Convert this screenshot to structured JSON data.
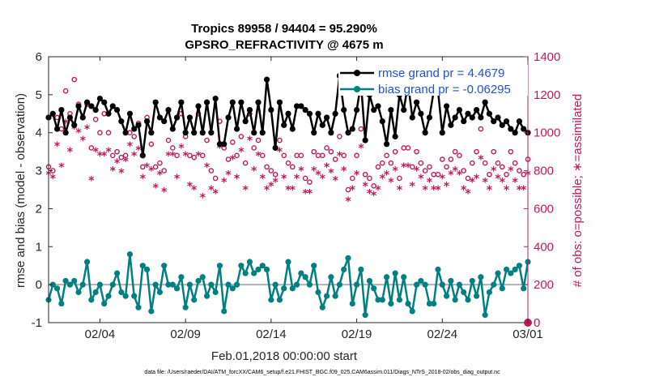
{
  "chart_data": {
    "type": "line",
    "title_line1": "Tropics 89958 / 94404 = 95.290%",
    "title_line2": "GPSRO_REFRACTIVITY @ 4675 m",
    "xlabel": "Feb.01,2018 00:00:00 start",
    "ylabel_left": "rmse and bias (model - observation)",
    "ylabel_right": "# of obs: o=possible; ∗=assimilated",
    "footnote": "data file: /Users/raeder/DAI/ATM_forcXX/CAM6_setup/f.e21.FHIST_BGC.f09_025.CAM6assim.011/Diags_NTrS_2018-02/obs_diag_output.nc",
    "xlim": [
      1,
      29
    ],
    "ylim_left": [
      -1,
      6
    ],
    "ylim_right": [
      0,
      1400
    ],
    "x_ticks": [
      {
        "value": 4,
        "label": "02/04"
      },
      {
        "value": 9,
        "label": "02/09"
      },
      {
        "value": 14,
        "label": "02/14"
      },
      {
        "value": 19,
        "label": "02/19"
      },
      {
        "value": 24,
        "label": "02/24"
      },
      {
        "value": 29,
        "label": "03/01"
      }
    ],
    "y_ticks_left": [
      -1,
      0,
      1,
      2,
      3,
      4,
      5,
      6
    ],
    "y_ticks_right": [
      0,
      200,
      400,
      600,
      800,
      1000,
      1200,
      1400
    ],
    "zero_line": 0,
    "colors": {
      "rmse": "#000000",
      "bias": "#008080",
      "obs": "#c2185b",
      "legend_text": "#1f4fe0",
      "zero_line": "#b0b0b0"
    },
    "legend": [
      {
        "label": "rmse grand pr = 4.4679",
        "series": "rmse"
      },
      {
        "label": "bias grand pr = -0.06295",
        "series": "bias"
      }
    ],
    "x": [
      1.0,
      1.25,
      1.5,
      1.75,
      2.0,
      2.25,
      2.5,
      2.75,
      3.0,
      3.25,
      3.5,
      3.75,
      4.0,
      4.25,
      4.5,
      4.75,
      5.0,
      5.25,
      5.5,
      5.75,
      6.0,
      6.25,
      6.5,
      6.75,
      7.0,
      7.25,
      7.5,
      7.75,
      8.0,
      8.25,
      8.5,
      8.75,
      9.0,
      9.25,
      9.5,
      9.75,
      10.0,
      10.25,
      10.5,
      10.75,
      11.0,
      11.25,
      11.5,
      11.75,
      12.0,
      12.25,
      12.5,
      12.75,
      13.0,
      13.25,
      13.5,
      13.75,
      14.0,
      14.25,
      14.5,
      14.75,
      15.0,
      15.25,
      15.5,
      15.75,
      16.0,
      16.25,
      16.5,
      16.75,
      17.0,
      17.25,
      17.5,
      17.75,
      18.0,
      18.25,
      18.5,
      18.75,
      19.0,
      19.25,
      19.5,
      19.75,
      20.0,
      20.25,
      20.5,
      20.75,
      21.0,
      21.25,
      21.5,
      21.75,
      22.0,
      22.25,
      22.5,
      22.75,
      23.0,
      23.25,
      23.5,
      23.75,
      24.0,
      24.25,
      24.5,
      24.75,
      25.0,
      25.25,
      25.5,
      25.75,
      26.0,
      26.25,
      26.5,
      26.75,
      27.0,
      27.25,
      27.5,
      27.75,
      28.0,
      28.25,
      28.5,
      28.75,
      29.0
    ],
    "series": [
      {
        "name": "rmse",
        "axis": "left",
        "values": [
          4.4,
          4.5,
          4.1,
          4.6,
          4.0,
          4.4,
          4.2,
          4.7,
          4.4,
          4.8,
          4.7,
          4.6,
          4.9,
          4.8,
          4.5,
          4.7,
          4.6,
          4.3,
          4.0,
          4.5,
          4.1,
          4.2,
          3.4,
          4.3,
          4.0,
          4.8,
          4.4,
          4.3,
          4.6,
          4.1,
          4.4,
          4.8,
          4.0,
          4.4,
          4.0,
          4.7,
          4.0,
          4.8,
          4.0,
          4.9,
          3.7,
          3.7,
          4.4,
          4.8,
          4.1,
          4.8,
          4.3,
          4.6,
          4.0,
          4.8,
          4.0,
          5.4,
          4.6,
          3.6,
          4.8,
          4.2,
          4.5,
          4.1,
          4.7,
          4.7,
          4.6,
          4.5,
          4.0,
          4.5,
          4.2,
          4.4,
          4.0,
          4.5,
          5.5,
          4.6,
          4.0,
          4.1,
          4.6,
          5.3,
          3.8,
          5.0,
          4.6,
          4.7,
          4.3,
          3.7,
          4.6,
          3.9,
          5.0,
          4.6,
          5.3,
          4.4,
          4.8,
          4.5,
          4.0,
          4.4,
          5.1,
          5.1,
          4.0,
          4.7,
          4.2,
          4.4,
          4.6,
          4.3,
          4.5,
          4.4,
          4.6,
          4.4,
          4.8,
          4.5,
          4.3,
          4.4,
          4.2,
          4.3,
          4.1,
          4.0,
          4.3,
          4.1,
          4.0
        ]
      },
      {
        "name": "bias",
        "axis": "left",
        "values": [
          -0.4,
          0.0,
          -0.1,
          -0.5,
          0.1,
          0.0,
          0.1,
          -0.2,
          0.0,
          0.6,
          -0.4,
          -0.2,
          0.0,
          -0.5,
          -0.3,
          0.0,
          0.3,
          -0.2,
          -0.3,
          0.8,
          -0.3,
          -0.6,
          0.5,
          0.4,
          -0.7,
          0.0,
          -0.2,
          0.5,
          0.0,
          0.0,
          -0.1,
          0.2,
          -0.6,
          0.0,
          -0.4,
          0.1,
          0.2,
          -0.3,
          0.0,
          -0.2,
          0.5,
          -0.7,
          0.0,
          -0.1,
          0.0,
          0.5,
          0.3,
          0.6,
          0.3,
          0.4,
          0.5,
          0.4,
          -0.4,
          0.0,
          -0.4,
          -0.1,
          0.6,
          -0.1,
          0.0,
          0.3,
          0.2,
          0.0,
          0.5,
          -0.2,
          -0.6,
          -0.3,
          0.2,
          -0.3,
          0.0,
          0.4,
          0.7,
          -0.5,
          0.0,
          0.4,
          -0.8,
          0.1,
          -0.1,
          -0.4,
          -0.4,
          0.2,
          -0.5,
          0.3,
          -0.4,
          0.2,
          -0.5,
          -0.7,
          0.0,
          0.1,
          0.0,
          -0.5,
          -0.5,
          0.4,
          0.0,
          -0.3,
          0.1,
          -0.4,
          0.0,
          -0.2,
          -0.4,
          0.1,
          -0.3,
          0.2,
          -0.8,
          -0.2,
          0.0,
          0.3,
          -0.1,
          0.4,
          0.3,
          0.4,
          0.5,
          -0.1,
          0.6
        ]
      },
      {
        "name": "possible",
        "axis": "right",
        "values": [
          820,
          800,
          1080,
          1020,
          1220,
          1100,
          1280,
          1150,
          1080,
          1150,
          920,
          1070,
          1000,
          1100,
          1000,
          880,
          900,
          870,
          880,
          1000,
          980,
          1050,
          820,
          1080,
          940,
          820,
          840,
          800,
          960,
          920,
          880,
          1100,
          980,
          880,
          870,
          1100,
          880,
          960,
          800,
          760,
          1060,
          920,
          860,
          950,
          880,
          980,
          840,
          1100,
          920,
          960,
          880,
          820,
          800,
          780,
          960,
          880,
          840,
          820,
          880,
          880,
          760,
          740,
          900,
          880,
          880,
          920,
          900,
          860,
          980,
          880,
          700,
          760,
          880,
          1020,
          780,
          760,
          720,
          820,
          840,
          880,
          840,
          900,
          760,
          920,
          920,
          820,
          900,
          840,
          800,
          820,
          780,
          780,
          860,
          820,
          860,
          900,
          880,
          800,
          760,
          840,
          900,
          1020,
          840,
          780,
          900,
          840,
          820,
          780,
          900,
          840,
          800,
          780,
          860
        ]
      },
      {
        "name": "assimilated",
        "axis": "right",
        "values": [
          780,
          760,
          930,
          820,
          1050,
          900,
          1020,
          1000,
          960,
          1020,
          750,
          900,
          880,
          880,
          900,
          800,
          840,
          790,
          850,
          930,
          880,
          910,
          760,
          820,
          800,
          710,
          780,
          690,
          880,
          880,
          760,
          920,
          880,
          720,
          700,
          880,
          660,
          820,
          700,
          680,
          920,
          740,
          780,
          860,
          760,
          900,
          700,
          960,
          800,
          880,
          760,
          700,
          720,
          740,
          900,
          760,
          700,
          700,
          760,
          800,
          680,
          680,
          800,
          780,
          760,
          820,
          790,
          750,
          880,
          800,
          640,
          700,
          780,
          920,
          720,
          680,
          670,
          700,
          760,
          780,
          740,
          800,
          700,
          820,
          820,
          720,
          800,
          760,
          700,
          740,
          700,
          700,
          760,
          720,
          780,
          800,
          780,
          700,
          680,
          740,
          760,
          860,
          740,
          700,
          800,
          760,
          740,
          700,
          800,
          740,
          700,
          700,
          780
        ]
      }
    ]
  }
}
